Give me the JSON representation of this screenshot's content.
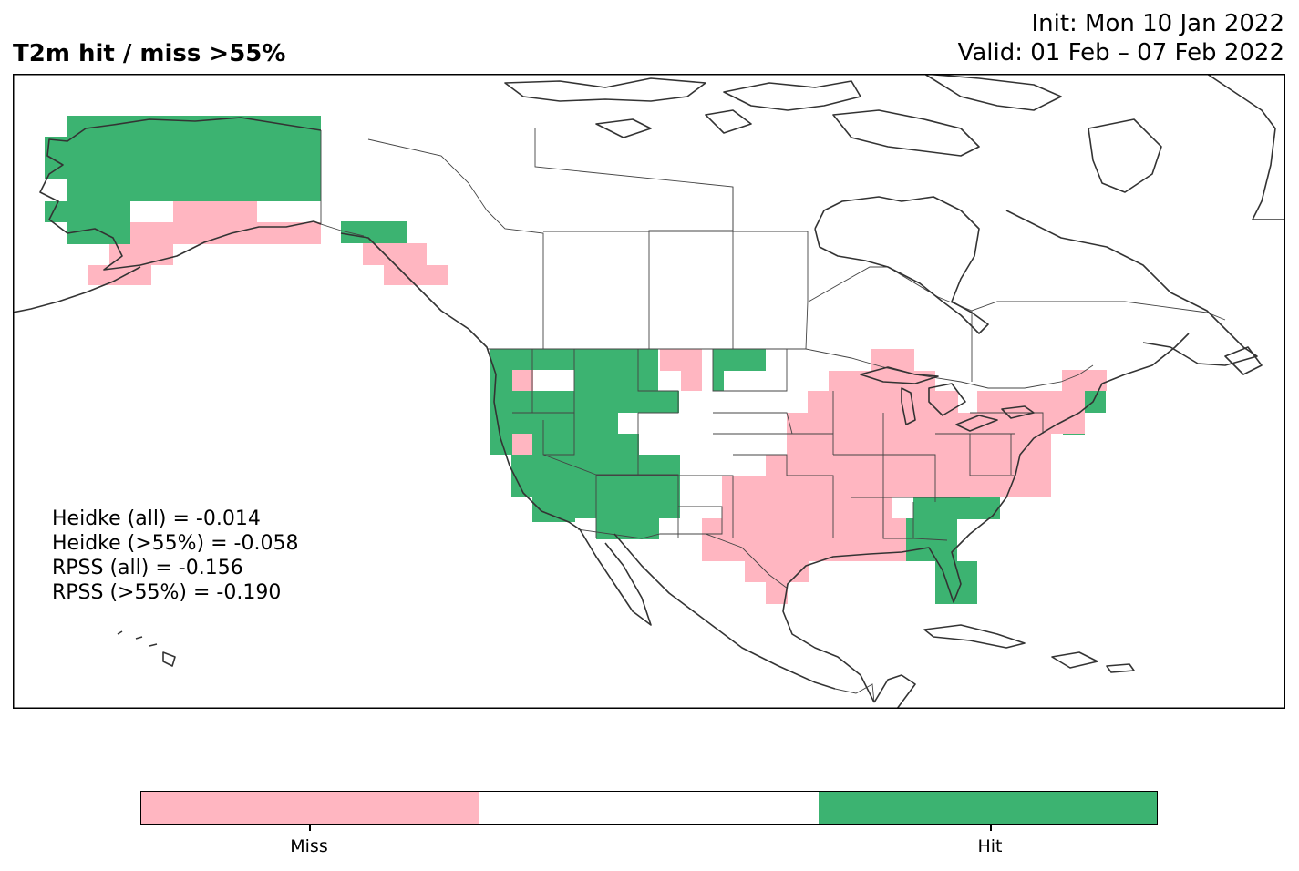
{
  "title": "T2m hit / miss  >55%",
  "init_line": "Init: Mon 10 Jan 2022",
  "valid_line": "Valid: 01 Feb – 07 Feb 2022",
  "stats": [
    "Heidke (all) = -0.014",
    "Heidke (>55%) = -0.058",
    "RPSS (all) = -0.156",
    "RPSS (>55%) = -0.190"
  ],
  "colors": {
    "miss": "#ffb6c1",
    "neutral": "#ffffff",
    "hit": "#3cb371",
    "coast": "#333333"
  },
  "legend": {
    "miss_label": "Miss",
    "hit_label": "Hit"
  }
}
